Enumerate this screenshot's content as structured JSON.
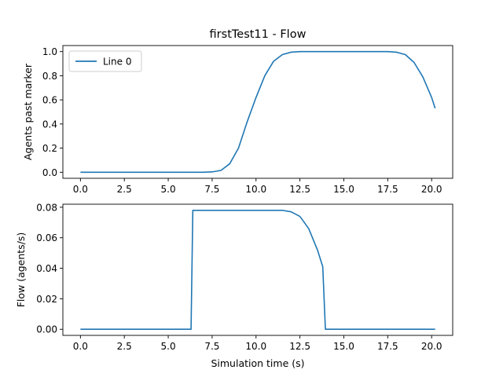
{
  "figure": {
    "title": "firstTest11 - Flow"
  },
  "chart_data": [
    {
      "type": "line",
      "title": "firstTest11 - Flow",
      "xlabel": "",
      "ylabel": "Agents past marker",
      "xlim": [
        -1.0,
        21.2
      ],
      "ylim": [
        -0.05,
        1.05
      ],
      "xticks": [
        0.0,
        2.5,
        5.0,
        7.5,
        10.0,
        12.5,
        15.0,
        17.5,
        20.0
      ],
      "xtick_labels": [
        "0.0",
        "2.5",
        "5.0",
        "7.5",
        "10.0",
        "12.5",
        "15.0",
        "17.5",
        "20.0"
      ],
      "yticks": [
        0.0,
        0.2,
        0.4,
        0.6,
        0.8,
        1.0
      ],
      "ytick_labels": [
        "0.0",
        "0.2",
        "0.4",
        "0.6",
        "0.8",
        "1.0"
      ],
      "grid": false,
      "legend": "upper-left",
      "series": [
        {
          "name": "Line 0",
          "color": "#1f77b4",
          "x": [
            0,
            1,
            2,
            3,
            4,
            5,
            6,
            7,
            7.5,
            8.0,
            8.5,
            9.0,
            9.5,
            10.0,
            10.5,
            11.0,
            11.5,
            12.0,
            12.5,
            13,
            14,
            15,
            16,
            17,
            17.5,
            18.0,
            18.5,
            19.0,
            19.5,
            20.0,
            20.2
          ],
          "y": [
            0,
            0,
            0,
            0,
            0,
            0,
            0,
            0,
            0.003,
            0.015,
            0.07,
            0.2,
            0.42,
            0.62,
            0.8,
            0.92,
            0.975,
            0.995,
            1.0,
            1.0,
            1.0,
            1.0,
            1.0,
            1.0,
            1.0,
            0.995,
            0.975,
            0.91,
            0.79,
            0.62,
            0.53
          ]
        }
      ]
    },
    {
      "type": "line",
      "title": "",
      "xlabel": "Simulation time (s)",
      "ylabel": "Flow (agents/s)",
      "xlim": [
        -1.0,
        21.2
      ],
      "ylim": [
        -0.004,
        0.082
      ],
      "xticks": [
        0.0,
        2.5,
        5.0,
        7.5,
        10.0,
        12.5,
        15.0,
        17.5,
        20.0
      ],
      "xtick_labels": [
        "0.0",
        "2.5",
        "5.0",
        "7.5",
        "10.0",
        "12.5",
        "15.0",
        "17.5",
        "20.0"
      ],
      "yticks": [
        0.0,
        0.02,
        0.04,
        0.06,
        0.08
      ],
      "ytick_labels": [
        "0.00",
        "0.02",
        "0.04",
        "0.06",
        "0.08"
      ],
      "grid": false,
      "series": [
        {
          "color": "#1f77b4",
          "x": [
            0,
            6.3,
            6.4,
            7,
            8,
            9,
            10,
            11,
            11.5,
            12,
            12.5,
            13,
            13.5,
            13.8,
            13.95,
            14.0,
            15,
            17.5,
            20.2
          ],
          "y": [
            0,
            0,
            0.078,
            0.078,
            0.078,
            0.078,
            0.078,
            0.078,
            0.078,
            0.077,
            0.074,
            0.066,
            0.052,
            0.041,
            0.0,
            0.0,
            0.0,
            0.0,
            0.0
          ]
        }
      ]
    }
  ]
}
